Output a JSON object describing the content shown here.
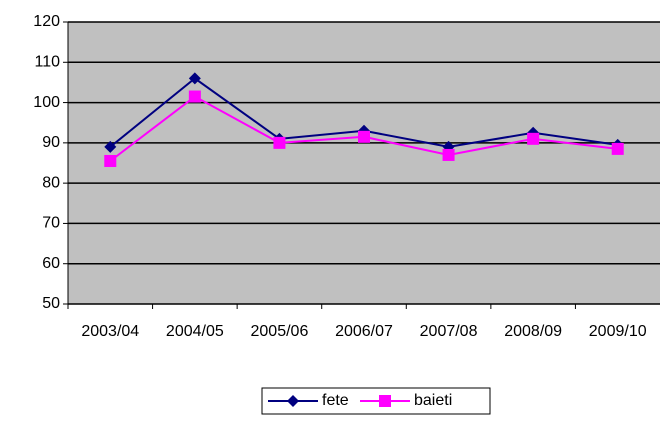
{
  "chart_data": {
    "type": "line",
    "categories": [
      "2003/04",
      "2004/05",
      "2005/06",
      "2006/07",
      "2007/08",
      "2008/09",
      "2009/10"
    ],
    "series": [
      {
        "name": "fete",
        "color": "#000080",
        "marker": "diamond",
        "values": [
          89,
          106,
          91,
          93,
          89,
          92.5,
          89.5
        ]
      },
      {
        "name": "baieti",
        "color": "#ff00ff",
        "marker": "square",
        "values": [
          85.5,
          101.5,
          90,
          91.5,
          87,
          91,
          88.5
        ]
      }
    ],
    "ylim": [
      50,
      120
    ],
    "yticks": [
      50,
      60,
      70,
      80,
      90,
      100,
      110,
      120
    ],
    "grid": true,
    "legend": "bottom"
  }
}
